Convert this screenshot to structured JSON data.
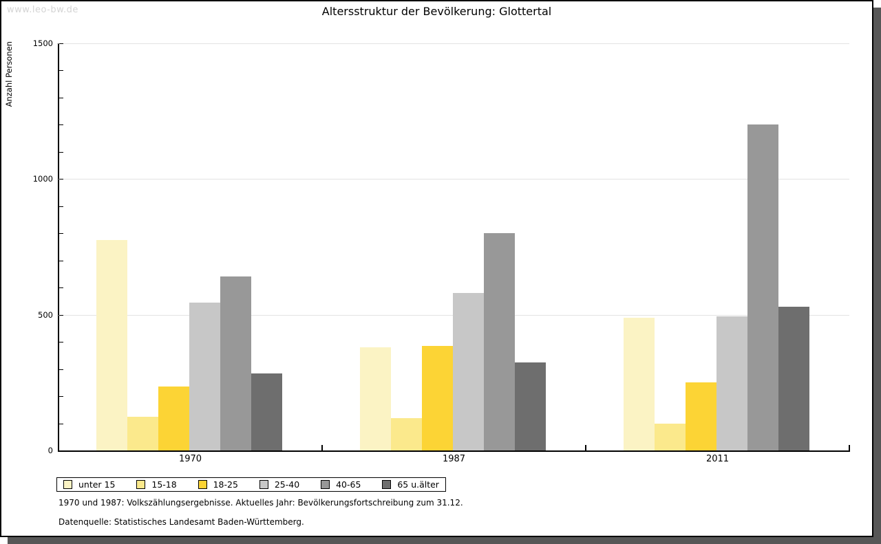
{
  "watermark": "www.leo-bw.de",
  "title": "Altersstruktur der Bevölkerung: Glottertal",
  "y_axis_title": "Anzahl Personen",
  "footnotes": [
    "1970 und 1987: Volkszählungsergebnisse. Aktuelles Jahr: Bevölkerungsfortschreibung zum 31.12.",
    "Datenquelle: Statistisches Landesamt Baden-Württemberg."
  ],
  "colors": {
    "shadow": "#575757",
    "gridline": "#e3e3e3",
    "axis": "#000000",
    "watermark_text": "#d4d4d4"
  },
  "chart_data": {
    "type": "bar",
    "title": "Altersstruktur der Bevölkerung: Glottertal",
    "xlabel": "",
    "ylabel": "Anzahl Personen",
    "categories": [
      "1970",
      "1987",
      "2011"
    ],
    "series": [
      {
        "name": "unter 15",
        "color": "#FBF3C4",
        "values": [
          775,
          380,
          490
        ]
      },
      {
        "name": "15-18",
        "color": "#FBE98C",
        "values": [
          125,
          120,
          100
        ]
      },
      {
        "name": "18-25",
        "color": "#FCD435",
        "values": [
          235,
          385,
          250
        ]
      },
      {
        "name": "25-40",
        "color": "#C7C7C7",
        "values": [
          545,
          580,
          495
        ]
      },
      {
        "name": "40-65",
        "color": "#989898",
        "values": [
          640,
          800,
          1200
        ]
      },
      {
        "name": "65 u.älter",
        "color": "#6E6E6E",
        "values": [
          285,
          325,
          530
        ]
      }
    ],
    "ylim": [
      0,
      1500
    ],
    "yticks_major": [
      0,
      500,
      1000,
      1500
    ],
    "ytick_minor_step": 100,
    "grid": true,
    "legend_position": "bottom-left"
  }
}
